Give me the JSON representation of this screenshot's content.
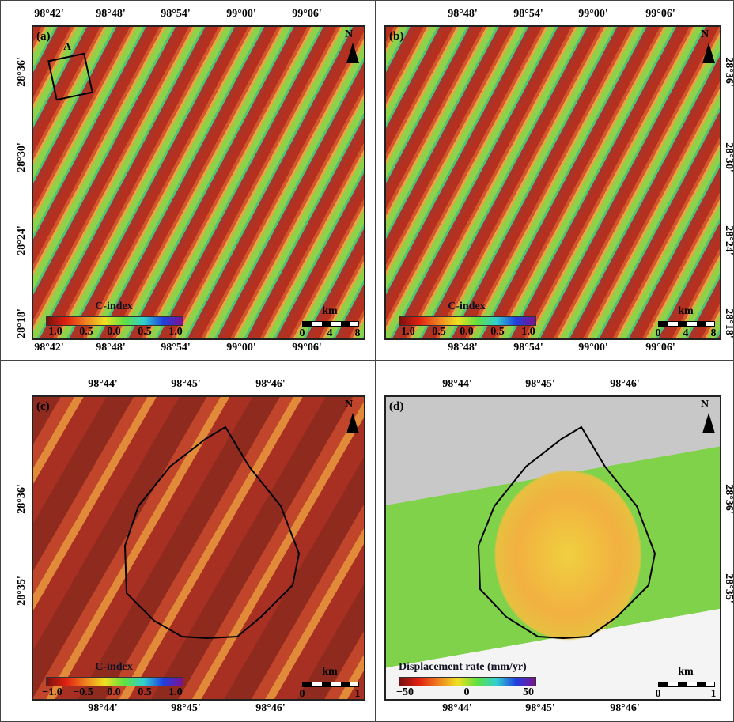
{
  "panels": [
    {
      "label": "(a)",
      "north": "N",
      "box_label": "A",
      "top_ticks": [
        "98°42'",
        "98°48'",
        "98°54'",
        "99°00'",
        "99°06'"
      ],
      "bottom_ticks": [
        "98°42'",
        "98°48'",
        "98°54'",
        "99°00'",
        "99°06'"
      ],
      "left_ticks": [
        "28°36'",
        "28°30'",
        "28°24'",
        "28°18'"
      ],
      "colorbar": {
        "title": "C-index",
        "ticks": [
          "−1.0",
          "−0.5",
          "0.0",
          "0.5",
          "1.0"
        ]
      },
      "scalebar": {
        "unit": "km",
        "ticks": [
          "0",
          "4",
          "8"
        ]
      }
    },
    {
      "label": "(b)",
      "north": "N",
      "top_ticks": [
        "98°48'",
        "98°54'",
        "99°00'",
        "99°06'"
      ],
      "bottom_ticks": [
        "98°48'",
        "98°54'",
        "99°00'",
        "99°06'"
      ],
      "right_ticks": [
        "28°36'",
        "28°30'",
        "28°24'",
        "28°18'"
      ],
      "colorbar": {
        "title": "C-index",
        "ticks": [
          "−1.0",
          "−0.5",
          "0.0",
          "0.5",
          "1.0"
        ]
      },
      "scalebar": {
        "unit": "km",
        "ticks": [
          "0",
          "4",
          "8"
        ]
      }
    },
    {
      "label": "(c)",
      "north": "N",
      "top_ticks": [
        "98°44'",
        "98°45'",
        "98°46'"
      ],
      "bottom_ticks": [
        "98°44'",
        "98°45'",
        "98°46'"
      ],
      "left_ticks": [
        "28°36'",
        "28°35'"
      ],
      "colorbar": {
        "title": "C-index",
        "ticks": [
          "−1.0",
          "−0.5",
          "0.0",
          "0.5",
          "1.0"
        ]
      },
      "scalebar": {
        "unit": "km",
        "ticks": [
          "0",
          "1"
        ]
      }
    },
    {
      "label": "(d)",
      "north": "N",
      "top_ticks": [
        "98°44'",
        "98°45'",
        "98°46'"
      ],
      "bottom_ticks": [
        "98°44'",
        "98°45'",
        "98°46'"
      ],
      "right_ticks": [
        "28°36'",
        "28°35'"
      ],
      "colorbar": {
        "title": "Displacement rate (mm/yr)",
        "ticks": [
          "−50",
          "0",
          "50"
        ]
      },
      "scalebar": {
        "unit": "km",
        "ticks": [
          "0",
          "1"
        ]
      }
    }
  ]
}
